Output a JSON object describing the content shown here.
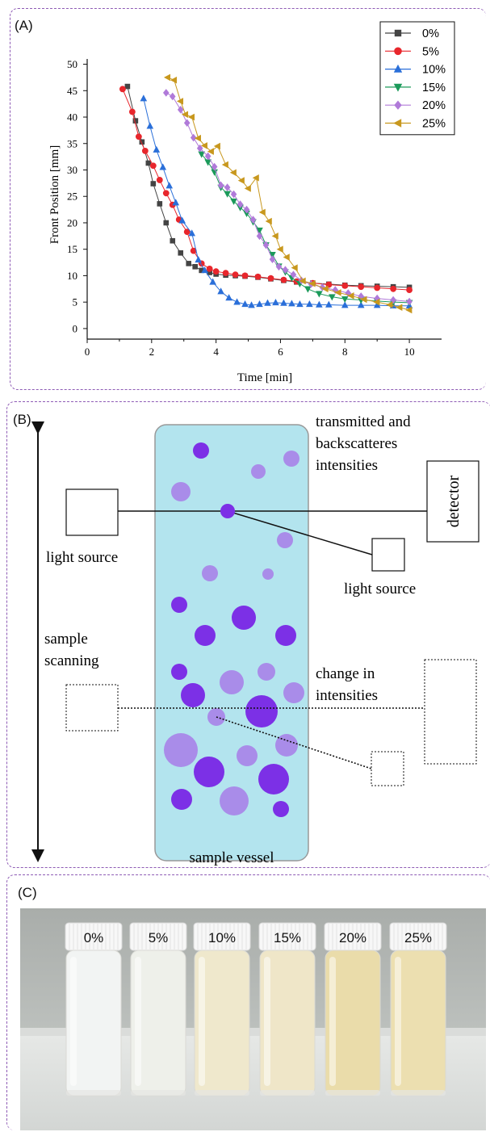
{
  "panels": {
    "a_label": "(A)",
    "b_label": "(B)",
    "c_label": "(C)"
  },
  "chart_data": {
    "type": "line",
    "xlabel": "Time [min]",
    "ylabel": "Front Position [mm]",
    "xlim": [
      0,
      11
    ],
    "ylim": [
      -2,
      51
    ],
    "xticks": [
      0,
      2,
      4,
      6,
      8,
      10
    ],
    "yticks": [
      0,
      5,
      10,
      15,
      20,
      25,
      30,
      35,
      40,
      45,
      50
    ],
    "legend_position": "top-right",
    "series": [
      {
        "name": "0%",
        "color": "#444444",
        "marker": "square",
        "x": [
          1.25,
          1.5,
          1.7,
          1.9,
          2.05,
          2.25,
          2.45,
          2.65,
          2.9,
          3.15,
          3.35,
          3.55,
          3.8,
          4.0,
          4.3,
          4.6,
          4.9,
          5.3,
          5.7,
          6.1,
          6.5,
          7.0,
          7.5,
          8.0,
          8.5,
          9.0,
          9.5,
          10.0
        ],
        "y": [
          45.8,
          39.3,
          35.3,
          31.3,
          27.4,
          23.6,
          20.0,
          16.6,
          14.3,
          12.3,
          11.7,
          11.0,
          10.6,
          10.3,
          10.1,
          10.0,
          9.9,
          9.7,
          9.4,
          9.1,
          8.8,
          8.6,
          8.4,
          8.2,
          8.1,
          8.0,
          7.9,
          7.8
        ]
      },
      {
        "name": "5%",
        "color": "#e8262c",
        "marker": "circle",
        "x": [
          1.1,
          1.4,
          1.6,
          1.8,
          2.05,
          2.25,
          2.45,
          2.65,
          2.85,
          3.1,
          3.3,
          3.55,
          3.8,
          4.0,
          4.3,
          4.6,
          4.9,
          5.3,
          5.7,
          6.1,
          6.5,
          7.0,
          7.5,
          8.0,
          8.5,
          9.0,
          9.5,
          10.0
        ],
        "y": [
          45.3,
          41.0,
          36.3,
          33.6,
          30.8,
          28.1,
          25.6,
          23.4,
          20.6,
          18.3,
          14.7,
          12.3,
          11.3,
          10.8,
          10.5,
          10.2,
          10.0,
          9.8,
          9.5,
          9.2,
          8.9,
          8.6,
          8.3,
          8.1,
          7.9,
          7.7,
          7.5,
          7.3
        ]
      },
      {
        "name": "10%",
        "color": "#2a6fd9",
        "marker": "triangle-up",
        "x": [
          1.75,
          1.95,
          2.15,
          2.35,
          2.55,
          2.75,
          2.95,
          3.25,
          3.45,
          3.65,
          3.9,
          4.15,
          4.4,
          4.65,
          4.9,
          5.1,
          5.35,
          5.6,
          5.85,
          6.1,
          6.35,
          6.6,
          6.9,
          7.2,
          7.5,
          8.0,
          8.5,
          9.0,
          9.5,
          10.0
        ],
        "y": [
          43.5,
          38.3,
          33.8,
          30.5,
          27.0,
          23.8,
          20.4,
          18.0,
          13.0,
          11.0,
          8.8,
          7.0,
          5.8,
          5.0,
          4.6,
          4.4,
          4.6,
          4.8,
          4.9,
          4.8,
          4.7,
          4.6,
          4.6,
          4.5,
          4.5,
          4.4,
          4.4,
          4.4,
          4.3,
          4.3
        ]
      },
      {
        "name": "15%",
        "color": "#1b9a5a",
        "marker": "triangle-down",
        "x": [
          3.55,
          3.75,
          3.95,
          4.15,
          4.35,
          4.55,
          4.75,
          4.95,
          5.15,
          5.35,
          5.55,
          5.75,
          5.95,
          6.15,
          6.35,
          6.6,
          6.85,
          7.2,
          7.6,
          8.0,
          8.5,
          9.0,
          9.5,
          10.0
        ],
        "y": [
          33.0,
          31.5,
          29.6,
          26.7,
          25.5,
          24.1,
          22.9,
          21.8,
          20.2,
          18.6,
          15.8,
          14.0,
          11.8,
          10.7,
          9.6,
          8.5,
          7.5,
          6.6,
          6.0,
          5.6,
          5.4,
          5.2,
          5.0,
          4.9
        ]
      },
      {
        "name": "20%",
        "color": "#b07ad9",
        "marker": "diamond",
        "x": [
          2.45,
          2.65,
          2.9,
          3.1,
          3.3,
          3.5,
          3.75,
          3.95,
          4.15,
          4.35,
          4.55,
          4.75,
          4.95,
          5.15,
          5.35,
          5.55,
          5.75,
          5.95,
          6.15,
          6.4,
          6.65,
          6.95,
          7.3,
          7.7,
          8.1,
          8.5,
          9.0,
          9.5,
          10.0
        ],
        "y": [
          44.6,
          43.9,
          41.4,
          38.9,
          36.1,
          34.1,
          32.6,
          30.6,
          27.1,
          26.7,
          25.4,
          23.5,
          22.5,
          20.6,
          17.5,
          15.8,
          13.1,
          11.7,
          11.1,
          10.2,
          9.1,
          8.4,
          7.8,
          7.3,
          6.7,
          6.1,
          5.7,
          5.4,
          5.1
        ]
      },
      {
        "name": "25%",
        "color": "#c8981e",
        "marker": "triangle-left",
        "x": [
          2.5,
          2.7,
          2.9,
          3.05,
          3.25,
          3.45,
          3.65,
          3.85,
          4.05,
          4.3,
          4.55,
          4.8,
          5.0,
          5.25,
          5.45,
          5.65,
          5.85,
          6.0,
          6.2,
          6.45,
          6.7,
          7.0,
          7.4,
          7.8,
          8.2,
          8.6,
          9.0,
          9.4,
          9.7,
          10.0
        ],
        "y": [
          47.5,
          47.0,
          43.0,
          40.5,
          40.0,
          36.0,
          34.6,
          33.5,
          34.5,
          31.0,
          29.5,
          28.0,
          26.5,
          28.5,
          22.0,
          20.3,
          17.5,
          15.0,
          13.5,
          11.5,
          9.0,
          8.5,
          7.5,
          6.8,
          6.2,
          5.5,
          5.0,
          4.5,
          4.0,
          3.5
        ]
      }
    ]
  },
  "diagram": {
    "transmitted_line1": "transmitted and",
    "transmitted_line2": "backscatteres",
    "transmitted_line3": "intensities",
    "detector": "detector",
    "light_source_left": "light source",
    "light_source_right": "light source",
    "sample_line1": "sample",
    "sample_line2": "scanning",
    "change_line1": "change in",
    "change_line2": "intensities",
    "vessel": "sample vessel"
  },
  "photo": {
    "bottle_labels": [
      "0%",
      "5%",
      "10%",
      "15%",
      "20%",
      "25%"
    ],
    "bottle_colors": [
      "#f2f4f3",
      "#eef0ea",
      "#efe8cc",
      "#efe6c8",
      "#eadcaa",
      "#ecdfb0"
    ]
  }
}
